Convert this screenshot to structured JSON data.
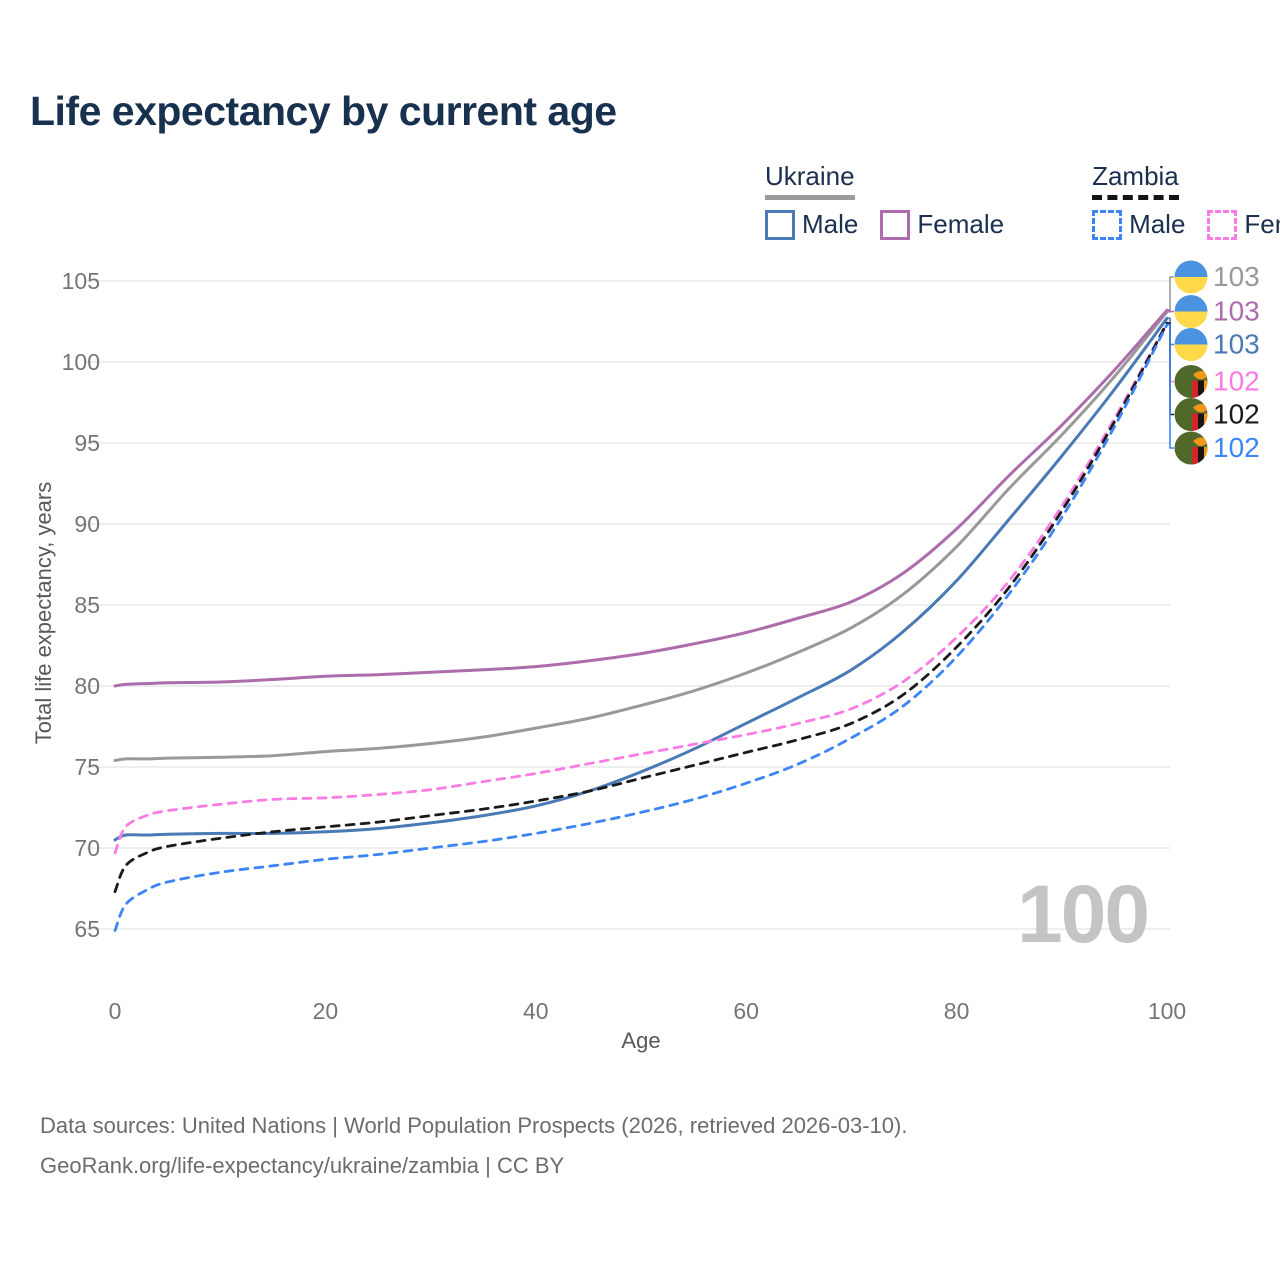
{
  "header": {
    "title": "Life expectancy by current age"
  },
  "legend": {
    "groups": [
      {
        "country": "Ukraine",
        "line_style": "solid",
        "items": [
          {
            "label": "Male",
            "series": 2
          },
          {
            "label": "Female",
            "series": 0
          }
        ]
      },
      {
        "country": "Zambia",
        "line_style": "dashed",
        "items": [
          {
            "label": "Male",
            "series": 5
          },
          {
            "label": "Female",
            "series": 3
          }
        ]
      }
    ]
  },
  "chart_data": {
    "type": "line",
    "title": "Life expectancy by current age",
    "xlabel": "Age",
    "ylabel": "Total life expectancy, years",
    "xlim": [
      0,
      100
    ],
    "ylim": [
      65,
      105
    ],
    "x_ticks": [
      0,
      20,
      40,
      60,
      80,
      100
    ],
    "y_ticks": [
      65,
      70,
      75,
      80,
      85,
      90,
      95,
      100,
      105
    ],
    "grid": "horizontal-only",
    "watermark": "100",
    "ages": [
      0,
      1,
      3,
      5,
      10,
      15,
      20,
      25,
      30,
      35,
      40,
      45,
      50,
      55,
      60,
      65,
      70,
      75,
      80,
      85,
      90,
      95,
      100
    ],
    "series": [
      {
        "name": "Ukraine Female",
        "color": "#ad6cab",
        "dash": false,
        "values": [
          80.0,
          80.1,
          80.15,
          80.2,
          80.25,
          80.4,
          80.6,
          80.7,
          80.85,
          81.0,
          81.2,
          81.55,
          82.0,
          82.6,
          83.3,
          84.2,
          85.2,
          87.0,
          89.7,
          93.0,
          96.1,
          99.5,
          103.2
        ]
      },
      {
        "name": "Ukraine (both sexes)",
        "color": "#999999",
        "dash": false,
        "values": [
          75.4,
          75.5,
          75.5,
          75.55,
          75.6,
          75.7,
          75.95,
          76.15,
          76.45,
          76.85,
          77.4,
          78.0,
          78.8,
          79.7,
          80.8,
          82.1,
          83.6,
          85.7,
          88.6,
          92.2,
          95.5,
          99.1,
          103.1
        ]
      },
      {
        "name": "Ukraine Male",
        "color": "#4a7ab5",
        "dash": false,
        "values": [
          70.5,
          70.8,
          70.8,
          70.85,
          70.9,
          70.9,
          71.0,
          71.2,
          71.55,
          72.0,
          72.6,
          73.5,
          74.7,
          76.1,
          77.7,
          79.3,
          81.0,
          83.4,
          86.5,
          90.3,
          94.2,
          98.3,
          102.7
        ]
      },
      {
        "name": "Zambia Female",
        "color": "#f97ce5",
        "dash": true,
        "values": [
          69.7,
          71.3,
          72.0,
          72.3,
          72.7,
          73.0,
          73.1,
          73.3,
          73.6,
          74.1,
          74.6,
          75.2,
          75.8,
          76.4,
          77.0,
          77.7,
          78.6,
          80.3,
          83.0,
          86.5,
          91.1,
          96.5,
          102.4
        ]
      },
      {
        "name": "Zambia (both sexes)",
        "color": "#1a1a1a",
        "dash": true,
        "values": [
          67.3,
          68.9,
          69.7,
          70.1,
          70.6,
          71.0,
          71.3,
          71.6,
          72.0,
          72.4,
          72.9,
          73.5,
          74.3,
          75.1,
          75.9,
          76.7,
          77.7,
          79.5,
          82.4,
          86.1,
          90.8,
          96.3,
          102.4
        ]
      },
      {
        "name": "Zambia Male",
        "color": "#3d85f5",
        "dash": true,
        "values": [
          64.9,
          66.5,
          67.4,
          67.9,
          68.5,
          68.9,
          69.3,
          69.6,
          70.0,
          70.4,
          70.9,
          71.5,
          72.2,
          73.0,
          74.0,
          75.2,
          76.8,
          78.8,
          81.8,
          85.7,
          90.4,
          96.0,
          102.3
        ]
      }
    ],
    "endpoint_labels": [
      {
        "value": "103",
        "flag": "ukraine",
        "series": 1
      },
      {
        "value": "103",
        "flag": "ukraine",
        "series": 0
      },
      {
        "value": "103",
        "flag": "ukraine",
        "series": 2
      },
      {
        "value": "102",
        "flag": "zambia",
        "series": 3
      },
      {
        "value": "102",
        "flag": "zambia",
        "series": 4
      },
      {
        "value": "102",
        "flag": "zambia",
        "series": 5
      }
    ],
    "flag_colors": {
      "ukraine_blue": "#4b92e0",
      "ukraine_yellow": "#ffd94a",
      "zambia_green": "#51682b",
      "zambia_red": "#d2262b",
      "zambia_black": "#161616",
      "zambia_orange": "#f39718"
    }
  },
  "style_colors": {
    "grid": "#e9e9e9",
    "tick_text": "#757575",
    "title_text": "#17314f",
    "legend_text": "#1b2f4e",
    "watermark": "#c4c4c4",
    "footer_text": "#6c6c6c"
  },
  "footer": {
    "line1": "Data sources: United Nations | World Population Prospects (2026, retrieved 2026-03-10).",
    "line2": "GeoRank.org/life-expectancy/ukraine/zambia | CC BY"
  }
}
